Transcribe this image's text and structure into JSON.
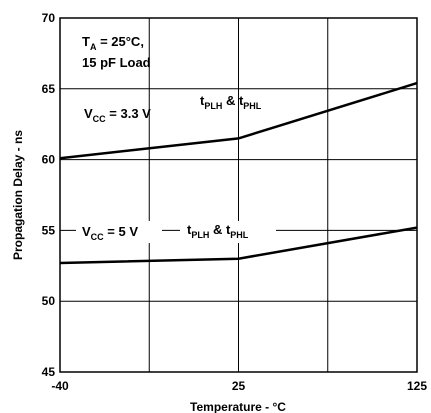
{
  "chart_data": {
    "type": "line",
    "xlabel": "Temperature - °C",
    "ylabel": "Propagation Delay - ns",
    "xlim": [
      -40,
      125
    ],
    "ylim": [
      45,
      70
    ],
    "x_ticks": [
      "-40",
      "25",
      "125"
    ],
    "y_ticks": [
      "45",
      "50",
      "55",
      "60",
      "65",
      "70"
    ],
    "grid": true,
    "series": [
      {
        "name_main": "V",
        "name_sub": "CC",
        "name_rest": " = 3.3 V",
        "x": [
          -40,
          25,
          125
        ],
        "y": [
          60.1,
          61.5,
          65.4
        ],
        "label": {
          "t1": "t",
          "s1": "PLH",
          "amp": " & t",
          "s2": "PHL"
        }
      },
      {
        "name_main": "V",
        "name_sub": "CC",
        "name_rest": " = 5 V",
        "x": [
          -40,
          25,
          125
        ],
        "y": [
          52.7,
          53.0,
          55.2
        ],
        "label": {
          "t1": "t",
          "s1": "PLH",
          "amp": " & t",
          "s2": "PHL"
        }
      }
    ],
    "annotation": {
      "ta_main": "T",
      "ta_sub": "A",
      "ta_rest": " = 25°C,",
      "load": "15 pF Load"
    }
  }
}
